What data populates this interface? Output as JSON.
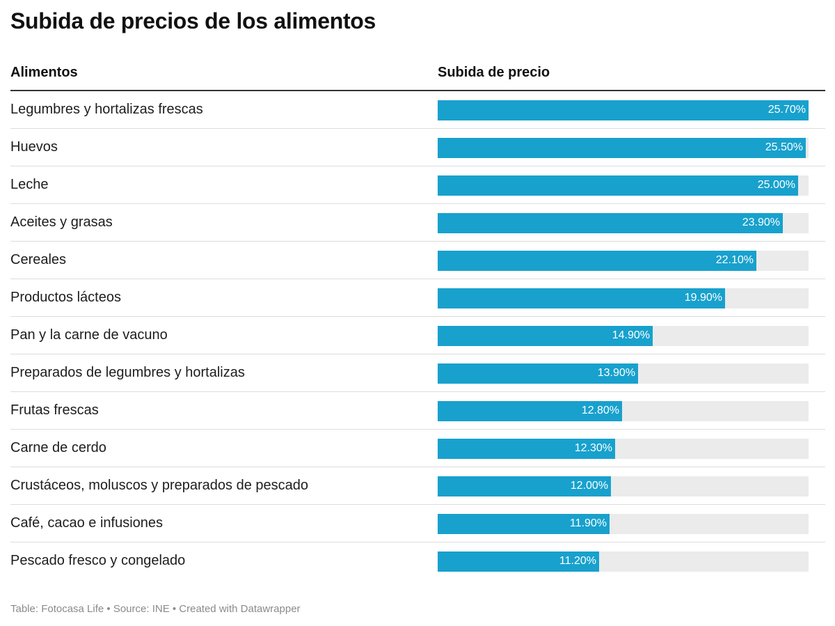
{
  "title": "Subida de precios de los alimentos",
  "footer": "Table: Fotocasa Life • Source: INE • Created with Datawrapper",
  "colors": {
    "bar": "#18a1cd",
    "track": "#ebebeb",
    "header_rule": "#333333",
    "row_rule": "#dddddd"
  },
  "chart_data": {
    "type": "table",
    "columns": [
      "Alimentos",
      "Subida de precio"
    ],
    "bar_max": 25.7,
    "rows": [
      {
        "food": "Legumbres y hortalizas frescas",
        "value": 25.7,
        "label": "25.70%"
      },
      {
        "food": "Huevos",
        "value": 25.5,
        "label": "25.50%"
      },
      {
        "food": "Leche",
        "value": 25.0,
        "label": "25.00%"
      },
      {
        "food": "Aceites y grasas",
        "value": 23.9,
        "label": "23.90%"
      },
      {
        "food": "Cereales",
        "value": 22.1,
        "label": "22.10%"
      },
      {
        "food": "Productos lácteos",
        "value": 19.9,
        "label": "19.90%"
      },
      {
        "food": "Pan y la carne de vacuno",
        "value": 14.9,
        "label": "14.90%"
      },
      {
        "food": "Preparados de legumbres y hortalizas",
        "value": 13.9,
        "label": "13.90%"
      },
      {
        "food": "Frutas frescas",
        "value": 12.8,
        "label": "12.80%"
      },
      {
        "food": "Carne de cerdo",
        "value": 12.3,
        "label": "12.30%"
      },
      {
        "food": "Crustáceos, moluscos y preparados de pescado",
        "value": 12.0,
        "label": "12.00%"
      },
      {
        "food": "Café, cacao e infusiones",
        "value": 11.9,
        "label": "11.90%"
      },
      {
        "food": "Pescado fresco y congelado",
        "value": 11.2,
        "label": "11.20%"
      }
    ]
  }
}
